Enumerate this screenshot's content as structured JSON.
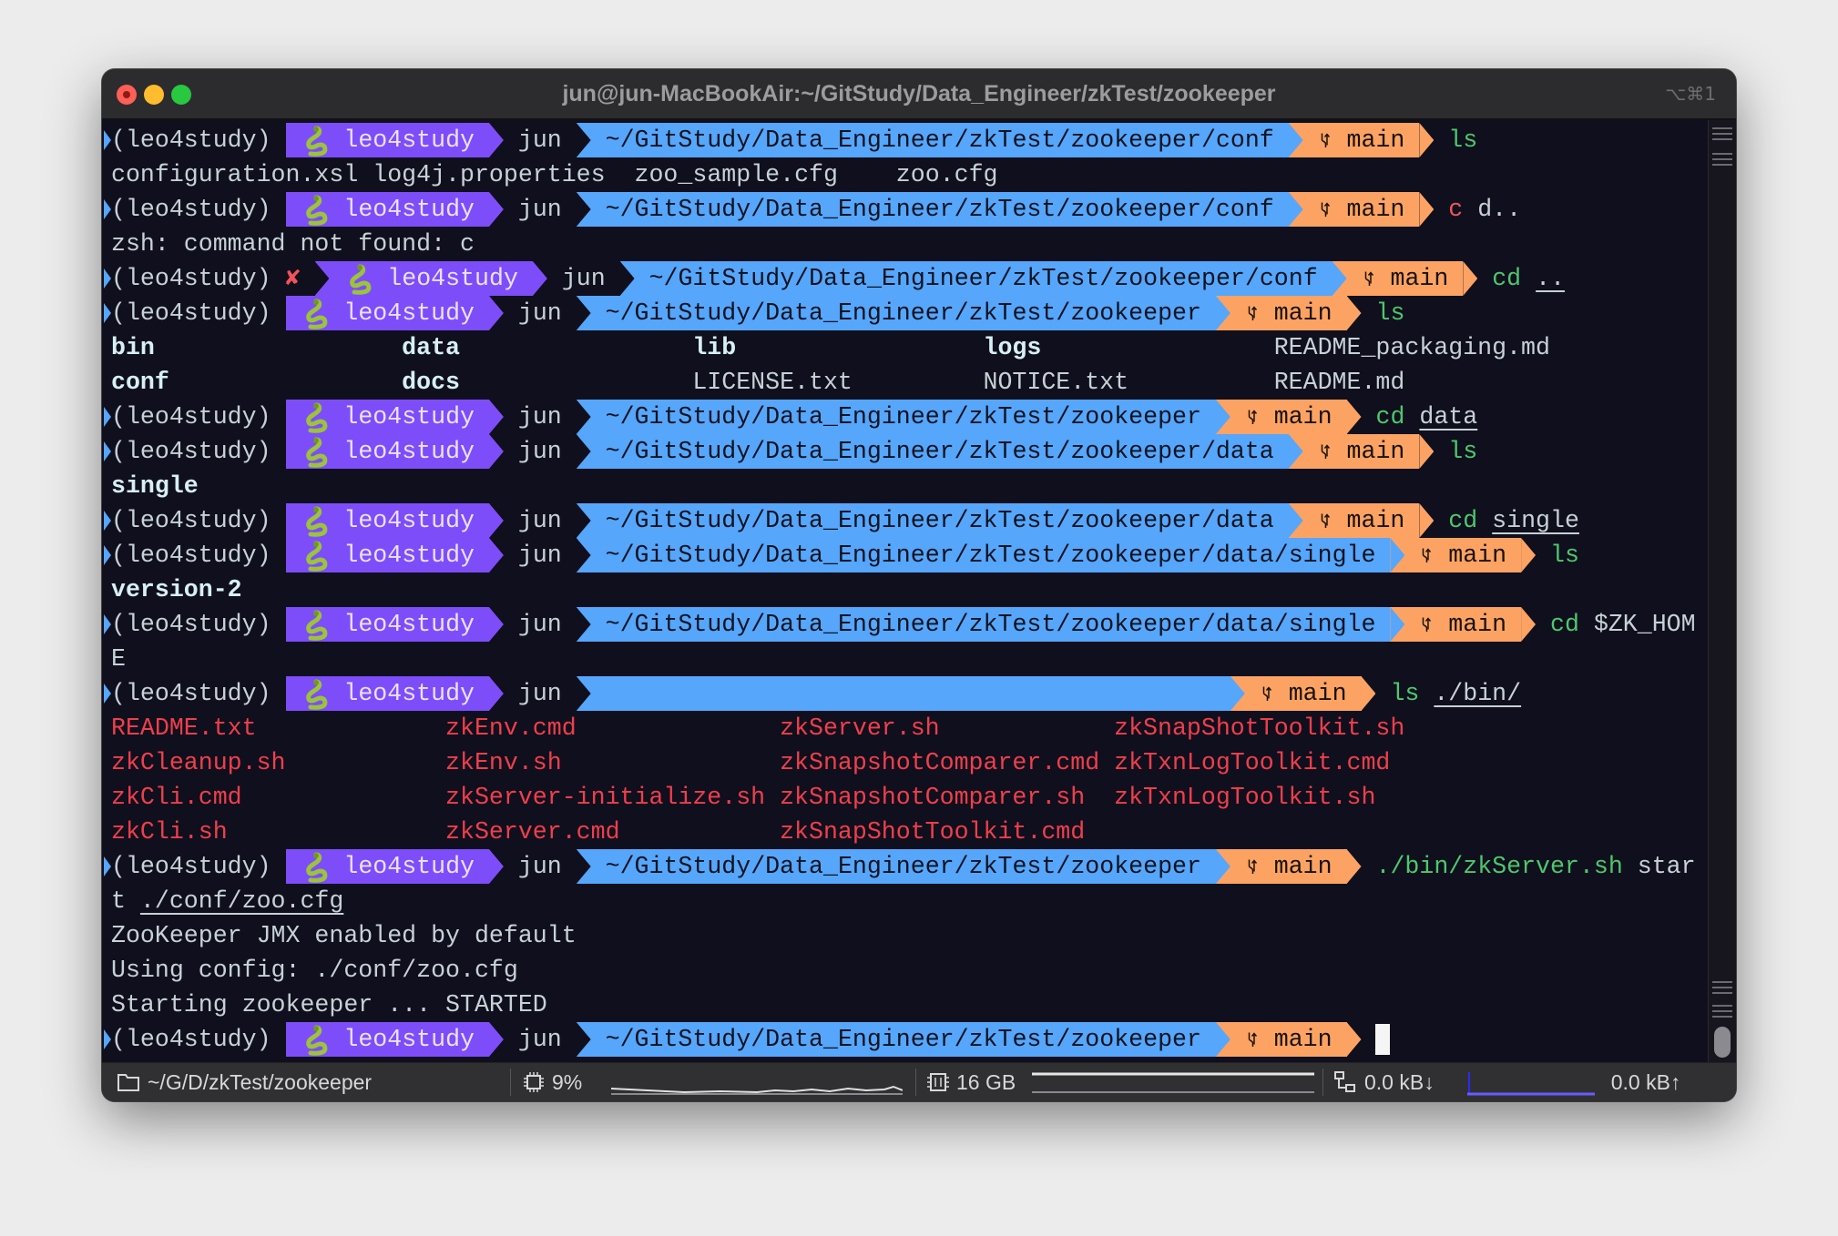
{
  "window": {
    "title": "jun@jun-MacBookAir:~/GitStudy/Data_Engineer/zkTest/zookeeper",
    "shortcut": "⌥⌘1"
  },
  "colors": {
    "purple": "#7e4dfa",
    "blue": "#56a6fb",
    "orange": "#fca364",
    "background": "#100f1d",
    "command_ok": "#4cc86c",
    "command_error": "#f2535a",
    "executable": "#f03e4c"
  },
  "prompt_icons": {
    "conda": "snake-icon",
    "branch": "git-branch-icon",
    "error": "cross-icon"
  },
  "lines": [
    {
      "type": "prompt",
      "env": "(leo4study)",
      "conda": "leo4study",
      "user": "jun",
      "path": "~/GitStudy/Data_Engineer/zkTest/zookeeper/conf",
      "branch": "main",
      "cmd": [
        {
          "t": "ls",
          "c": "green"
        }
      ]
    },
    {
      "type": "text",
      "text": "configuration.xsl log4j.properties  zoo_sample.cfg    zoo.cfg"
    },
    {
      "type": "prompt",
      "env": "(leo4study)",
      "conda": "leo4study",
      "user": "jun",
      "path": "~/GitStudy/Data_Engineer/zkTest/zookeeper/conf",
      "branch": "main",
      "cmd": [
        {
          "t": "c",
          "c": "red"
        },
        {
          "t": " d..",
          "c": "arg"
        }
      ]
    },
    {
      "type": "text",
      "text": "zsh: command not found: c"
    },
    {
      "type": "prompt",
      "error": true,
      "error_mark": "✘",
      "env": "(leo4study)",
      "conda": "leo4study",
      "user": "jun",
      "path": "~/GitStudy/Data_Engineer/zkTest/zookeeper/conf",
      "branch": "main",
      "cmd": [
        {
          "t": "cd",
          "c": "green"
        },
        {
          "t": " ",
          "c": "arg"
        },
        {
          "t": "..",
          "c": "arg ul"
        }
      ]
    },
    {
      "type": "prompt",
      "env": "(leo4study)",
      "conda": "leo4study",
      "user": "jun",
      "path": "~/GitStudy/Data_Engineer/zkTest/zookeeper",
      "branch": "main",
      "cmd": [
        {
          "t": "ls",
          "c": "green"
        }
      ]
    },
    {
      "type": "ls",
      "rows": [
        [
          {
            "t": "bin",
            "s": "dir"
          },
          {
            "t": "data",
            "s": "dir"
          },
          {
            "t": "lib",
            "s": "dir"
          },
          {
            "t": "logs",
            "s": "dir"
          },
          {
            "t": "README_packaging.md",
            "s": "file"
          }
        ],
        [
          {
            "t": "conf",
            "s": "dir"
          },
          {
            "t": "docs",
            "s": "dir"
          },
          {
            "t": "LICENSE.txt",
            "s": "file"
          },
          {
            "t": "NOTICE.txt",
            "s": "file"
          },
          {
            "t": "README.md",
            "s": "file"
          }
        ]
      ]
    },
    {
      "type": "prompt",
      "env": "(leo4study)",
      "conda": "leo4study",
      "user": "jun",
      "path": "~/GitStudy/Data_Engineer/zkTest/zookeeper",
      "branch": "main",
      "cmd": [
        {
          "t": "cd",
          "c": "green"
        },
        {
          "t": " ",
          "c": "arg"
        },
        {
          "t": "data",
          "c": "arg ul"
        }
      ]
    },
    {
      "type": "prompt",
      "env": "(leo4study)",
      "conda": "leo4study",
      "user": "jun",
      "path": "~/GitStudy/Data_Engineer/zkTest/zookeeper/data",
      "branch": "main",
      "cmd": [
        {
          "t": "ls",
          "c": "green"
        }
      ]
    },
    {
      "type": "ls",
      "rows": [
        [
          {
            "t": "single",
            "s": "dir"
          }
        ]
      ]
    },
    {
      "type": "prompt",
      "env": "(leo4study)",
      "conda": "leo4study",
      "user": "jun",
      "path": "~/GitStudy/Data_Engineer/zkTest/zookeeper/data",
      "branch": "main",
      "cmd": [
        {
          "t": "cd",
          "c": "green"
        },
        {
          "t": " ",
          "c": "arg"
        },
        {
          "t": "single",
          "c": "arg ul"
        }
      ]
    },
    {
      "type": "prompt",
      "env": "(leo4study)",
      "conda": "leo4study",
      "user": "jun",
      "path": "~/GitStudy/Data_Engineer/zkTest/zookeeper/data/single",
      "branch": "main",
      "cmd": [
        {
          "t": "ls",
          "c": "green"
        }
      ]
    },
    {
      "type": "ls",
      "rows": [
        [
          {
            "t": "version-2",
            "s": "dir"
          }
        ]
      ]
    },
    {
      "type": "prompt",
      "env": "(leo4study)",
      "conda": "leo4study",
      "user": "jun",
      "path": "~/GitStudy/Data_Engineer/zkTest/zookeeper/data/single",
      "branch": "main",
      "cmd": [
        {
          "t": "cd",
          "c": "green"
        },
        {
          "t": " $ZK_HOM",
          "c": "arg"
        }
      ]
    },
    {
      "type": "text",
      "text": "E"
    },
    {
      "type": "prompt",
      "env": "(leo4study)",
      "conda": "leo4study",
      "user": "jun",
      "path": "",
      "branch": "main",
      "cmd": [
        {
          "t": "ls",
          "c": "green"
        },
        {
          "t": " ",
          "c": "arg"
        },
        {
          "t": "./bin/",
          "c": "arg ul"
        }
      ]
    },
    {
      "type": "ls",
      "rows": [
        [
          {
            "t": "README.txt",
            "s": "exe"
          },
          {
            "t": "zkEnv.cmd",
            "s": "exe"
          },
          {
            "t": "zkServer.sh",
            "s": "exe"
          },
          {
            "t": "zkSnapShotToolkit.sh",
            "s": "exe"
          }
        ],
        [
          {
            "t": "zkCleanup.sh",
            "s": "exe"
          },
          {
            "t": "zkEnv.sh",
            "s": "exe"
          },
          {
            "t": "zkSnapshotComparer.cmd",
            "s": "exe"
          },
          {
            "t": "zkTxnLogToolkit.cmd",
            "s": "exe"
          }
        ],
        [
          {
            "t": "zkCli.cmd",
            "s": "exe"
          },
          {
            "t": "zkServer-initialize.sh",
            "s": "exe"
          },
          {
            "t": "zkSnapshotComparer.sh",
            "s": "exe"
          },
          {
            "t": "zkTxnLogToolkit.sh",
            "s": "exe"
          }
        ],
        [
          {
            "t": "zkCli.sh",
            "s": "exe"
          },
          {
            "t": "zkServer.cmd",
            "s": "exe"
          },
          {
            "t": "zkSnapShotToolkit.cmd",
            "s": "exe"
          }
        ]
      ]
    },
    {
      "type": "prompt",
      "env": "(leo4study)",
      "conda": "leo4study",
      "user": "jun",
      "path": "~/GitStudy/Data_Engineer/zkTest/zookeeper",
      "branch": "main",
      "cmd": [
        {
          "t": "./bin/zkServer.sh",
          "c": "green"
        },
        {
          "t": " star",
          "c": "arg"
        }
      ]
    },
    {
      "type": "cmdtext",
      "parts": [
        {
          "t": "t ",
          "c": "arg"
        },
        {
          "t": "./conf/zoo.cfg",
          "c": "arg ul"
        }
      ]
    },
    {
      "type": "text",
      "text": "ZooKeeper JMX enabled by default"
    },
    {
      "type": "text",
      "text": "Using config: ./conf/zoo.cfg"
    },
    {
      "type": "text",
      "text": "Starting zookeeper ... STARTED"
    },
    {
      "type": "prompt",
      "cursor": true,
      "env": "(leo4study)",
      "conda": "leo4study",
      "user": "jun",
      "path": "~/GitStudy/Data_Engineer/zkTest/zookeeper",
      "branch": "main",
      "cmd": []
    }
  ],
  "status_bar": {
    "directory": "~/G/D/zkTest/zookeeper",
    "cpu": "9%",
    "memory": "16 GB",
    "net_down": "0.0 kB↓",
    "net_up": "0.0 kB↑"
  }
}
